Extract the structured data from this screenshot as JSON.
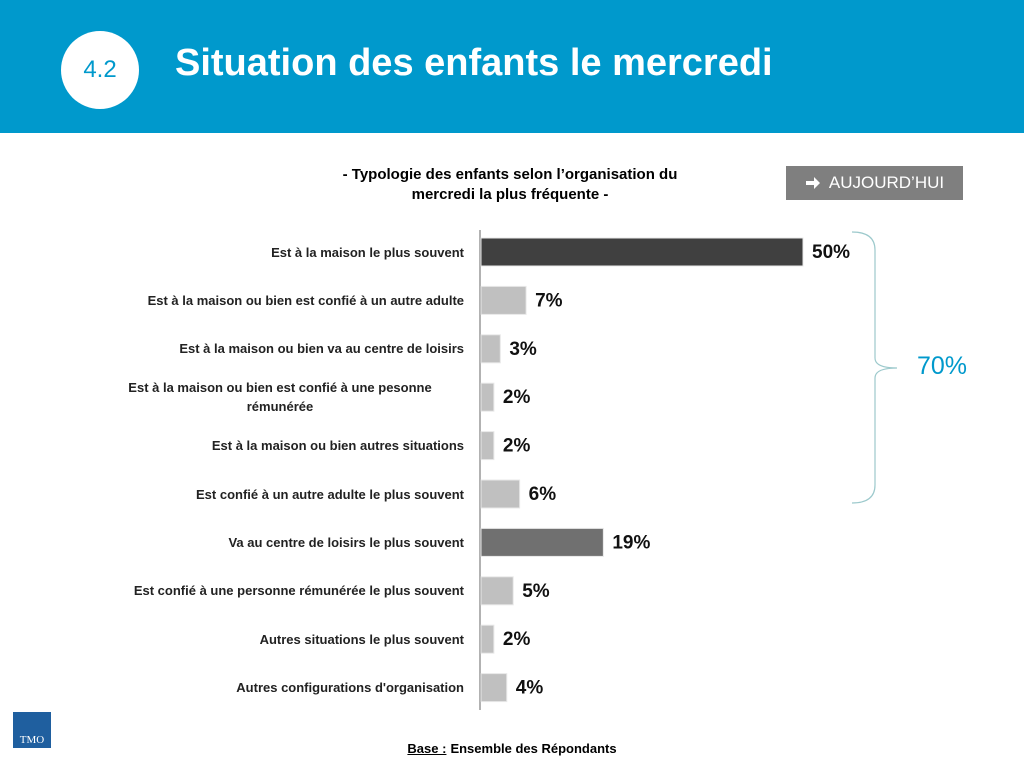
{
  "header": {
    "section": "4.2",
    "title": "Situation des enfants le mercredi"
  },
  "button": "AUJOURD’HUI",
  "chart_data": {
    "type": "bar",
    "orientation": "horizontal",
    "title": "- Typologie des enfants selon l’organisation du mercredi la plus fréquente -",
    "categories": [
      "Est à la maison le plus souvent",
      "Est à la maison ou bien est confié à un autre adulte",
      "Est à la maison ou bien va au centre de loisirs",
      "Est à la maison ou bien est confié à une pesonne rémunérée",
      "Est à la maison ou bien autres situations",
      "Est confié à un autre adulte le plus souvent",
      "Va au centre de loisirs le plus souvent",
      "Est confié à une personne rémunérée le plus souvent",
      "Autres situations le plus souvent",
      "Autres configurations d'organisation"
    ],
    "values": [
      50,
      7,
      3,
      2,
      2,
      6,
      19,
      5,
      2,
      4
    ],
    "value_labels": [
      "50%",
      "7%",
      "3%",
      "2%",
      "2%",
      "6%",
      "19%",
      "5%",
      "2%",
      "4%"
    ],
    "colors": [
      "#404040",
      "#c0c0c0",
      "#c0c0c0",
      "#c0c0c0",
      "#c0c0c0",
      "#c0c0c0",
      "#707070",
      "#c0c0c0",
      "#c0c0c0",
      "#c0c0c0"
    ],
    "annotation": "70%"
  },
  "footer": {
    "base_label": "Base :",
    "base_text": "Ensemble des Répondants"
  },
  "logo": "TMO"
}
